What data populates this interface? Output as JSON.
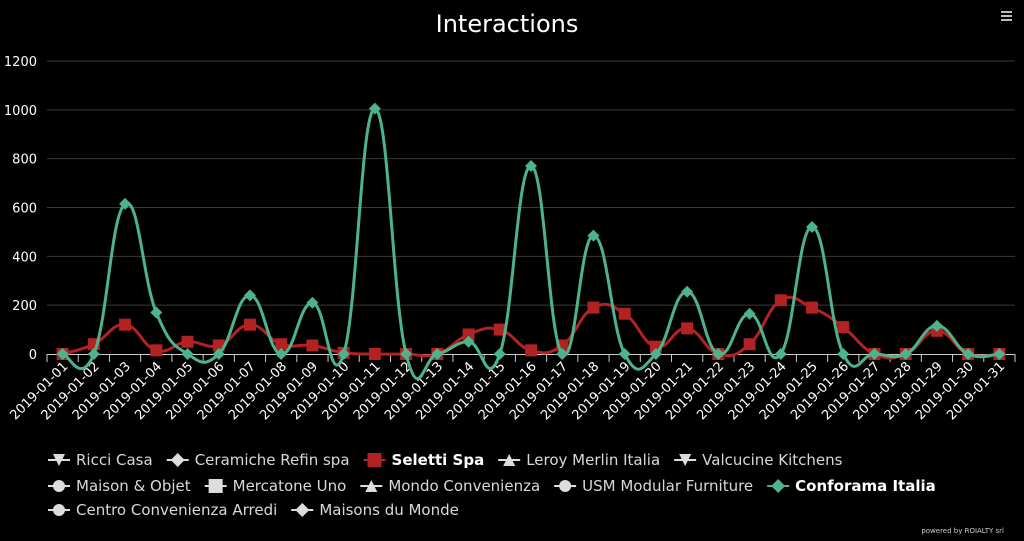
{
  "chart_data": {
    "type": "line",
    "title": "Interactions",
    "xlabel": "",
    "ylabel": "",
    "ylim": [
      0,
      1200
    ],
    "yticks": [
      0,
      200,
      400,
      600,
      800,
      1000,
      1200
    ],
    "grid": true,
    "legend_position": "bottom",
    "categories": [
      "2019-01-01",
      "2019-01-02",
      "2019-01-03",
      "2019-01-04",
      "2019-01-05",
      "2019-01-06",
      "2019-01-07",
      "2019-01-08",
      "2019-01-09",
      "2019-01-10",
      "2019-01-11",
      "2019-01-12",
      "2019-01-13",
      "2019-01-14",
      "2019-01-15",
      "2019-01-16",
      "2019-01-17",
      "2019-01-18",
      "2019-01-19",
      "2019-01-20",
      "2019-01-21",
      "2019-01-22",
      "2019-01-23",
      "2019-01-24",
      "2019-01-25",
      "2019-01-26",
      "2019-01-27",
      "2019-01-28",
      "2019-01-29",
      "2019-01-30",
      "2019-01-31"
    ],
    "series": [
      {
        "name": "Seletti Spa",
        "color": "#b22222",
        "marker": "square",
        "visible": true,
        "values": [
          0,
          40,
          120,
          15,
          50,
          35,
          120,
          40,
          35,
          5,
          0,
          0,
          0,
          80,
          100,
          15,
          35,
          190,
          165,
          30,
          105,
          0,
          40,
          220,
          190,
          110,
          0,
          0,
          95,
          0,
          0
        ]
      },
      {
        "name": "Conforama Italia",
        "color": "#4cb38c",
        "marker": "diamond",
        "visible": true,
        "values": [
          0,
          0,
          615,
          170,
          0,
          0,
          240,
          0,
          210,
          0,
          1005,
          0,
          0,
          50,
          0,
          770,
          0,
          485,
          0,
          0,
          255,
          0,
          165,
          0,
          520,
          0,
          0,
          0,
          115,
          0,
          0
        ]
      }
    ],
    "legend": [
      {
        "name": "Ricci Casa",
        "marker": "triangle-down",
        "color": "#dddddd",
        "active": false
      },
      {
        "name": "Ceramiche Refin spa",
        "marker": "diamond",
        "color": "#dddddd",
        "active": false
      },
      {
        "name": "Seletti Spa",
        "marker": "square",
        "color": "#b22222",
        "active": true
      },
      {
        "name": "Leroy Merlin Italia",
        "marker": "triangle",
        "color": "#dddddd",
        "active": false
      },
      {
        "name": "Valcucine Kitchens",
        "marker": "triangle-down",
        "color": "#dddddd",
        "active": false
      },
      {
        "name": "Maison & Objet",
        "marker": "circle",
        "color": "#dddddd",
        "active": false
      },
      {
        "name": "Mercatone Uno",
        "marker": "square",
        "color": "#dddddd",
        "active": false
      },
      {
        "name": "Mondo Convenienza",
        "marker": "triangle",
        "color": "#dddddd",
        "active": false
      },
      {
        "name": "USM Modular Furniture",
        "marker": "circle",
        "color": "#dddddd",
        "active": false
      },
      {
        "name": "Conforama Italia",
        "marker": "diamond",
        "color": "#4cb38c",
        "active": true
      },
      {
        "name": "Centro Convenienza Arredi",
        "marker": "circle",
        "color": "#dddddd",
        "active": false
      },
      {
        "name": "Maisons du Monde",
        "marker": "diamond",
        "color": "#dddddd",
        "active": false
      }
    ]
  },
  "credit": "powered by ROIALTY srl",
  "menu_icon": "hamburger-menu-icon"
}
